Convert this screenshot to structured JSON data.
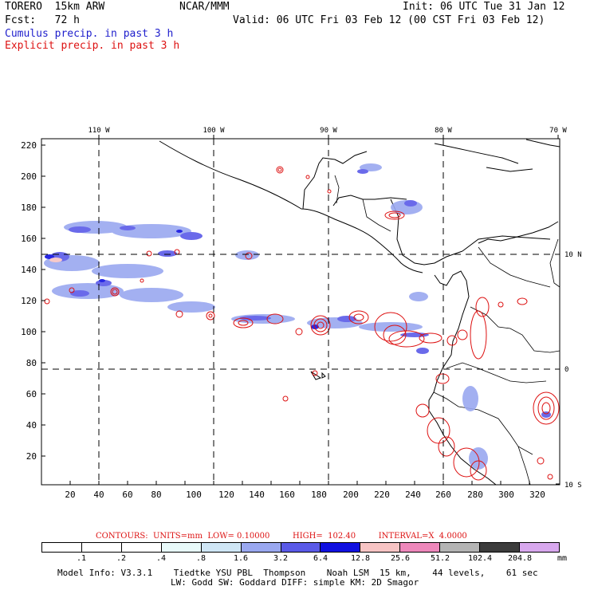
{
  "header": {
    "model_name": "TORERO  15km ARW",
    "org": "NCAR/MMM",
    "init": "Init: 06 UTC Tue 31 Jan 12",
    "fcst": "Fcst:   72 h",
    "valid": "Valid: 06 UTC Fri 03 Feb 12 (00 CST Fri 03 Feb 12)",
    "cumulus_label": "Cumulus precip. in past 3 h",
    "explicit_label": "Explicit precip. in past 3 h",
    "cumulus_color": "#1e1ecc",
    "explicit_color": "#dd1111"
  },
  "map": {
    "longitude_labels": [
      "110 W",
      "100 W",
      "90 W",
      "80 W",
      "70 W"
    ],
    "latitude_labels": [
      "10 N",
      "0",
      "10 S"
    ],
    "x_ticks": [
      "20",
      "40",
      "60",
      "80",
      "100",
      "120",
      "140",
      "160",
      "180",
      "200",
      "220",
      "240",
      "260",
      "280",
      "300",
      "320"
    ],
    "y_ticks": [
      "220",
      "200",
      "180",
      "160",
      "140",
      "120",
      "100",
      "80",
      "60",
      "40",
      "20"
    ],
    "grid_style": "dashed"
  },
  "contours": {
    "line": "CONTOURS:  UNITS=mm  LOW= 0.10000         HIGH=  102.40         INTERVAL=X  4.0000"
  },
  "legend": {
    "units": "mm",
    "labels": [
      ".1",
      ".2",
      ".4",
      ".8",
      "1.6",
      "3.2",
      "6.4",
      "12.8",
      "25.6",
      "51.2",
      "102.4",
      "204.8"
    ],
    "colors": [
      "#ffffff",
      "#ffffff",
      "#ffffff",
      "#e8fafa",
      "#cfe6f5",
      "#9aa8f0",
      "#5a5ae8",
      "#1010e0",
      "#f7c4c4",
      "#ee88bb",
      "#b4b4b4",
      "#3c3c3c",
      "#d8a8ee"
    ]
  },
  "footer": {
    "line1": "Model Info: V3.3.1    Tiedtke YSU PBL  Thompson    Noah LSM  15 km,    44 levels,    61 sec",
    "line2": "LW: Godd SW: Goddard DIFF: simple KM: 2D Smagor"
  }
}
